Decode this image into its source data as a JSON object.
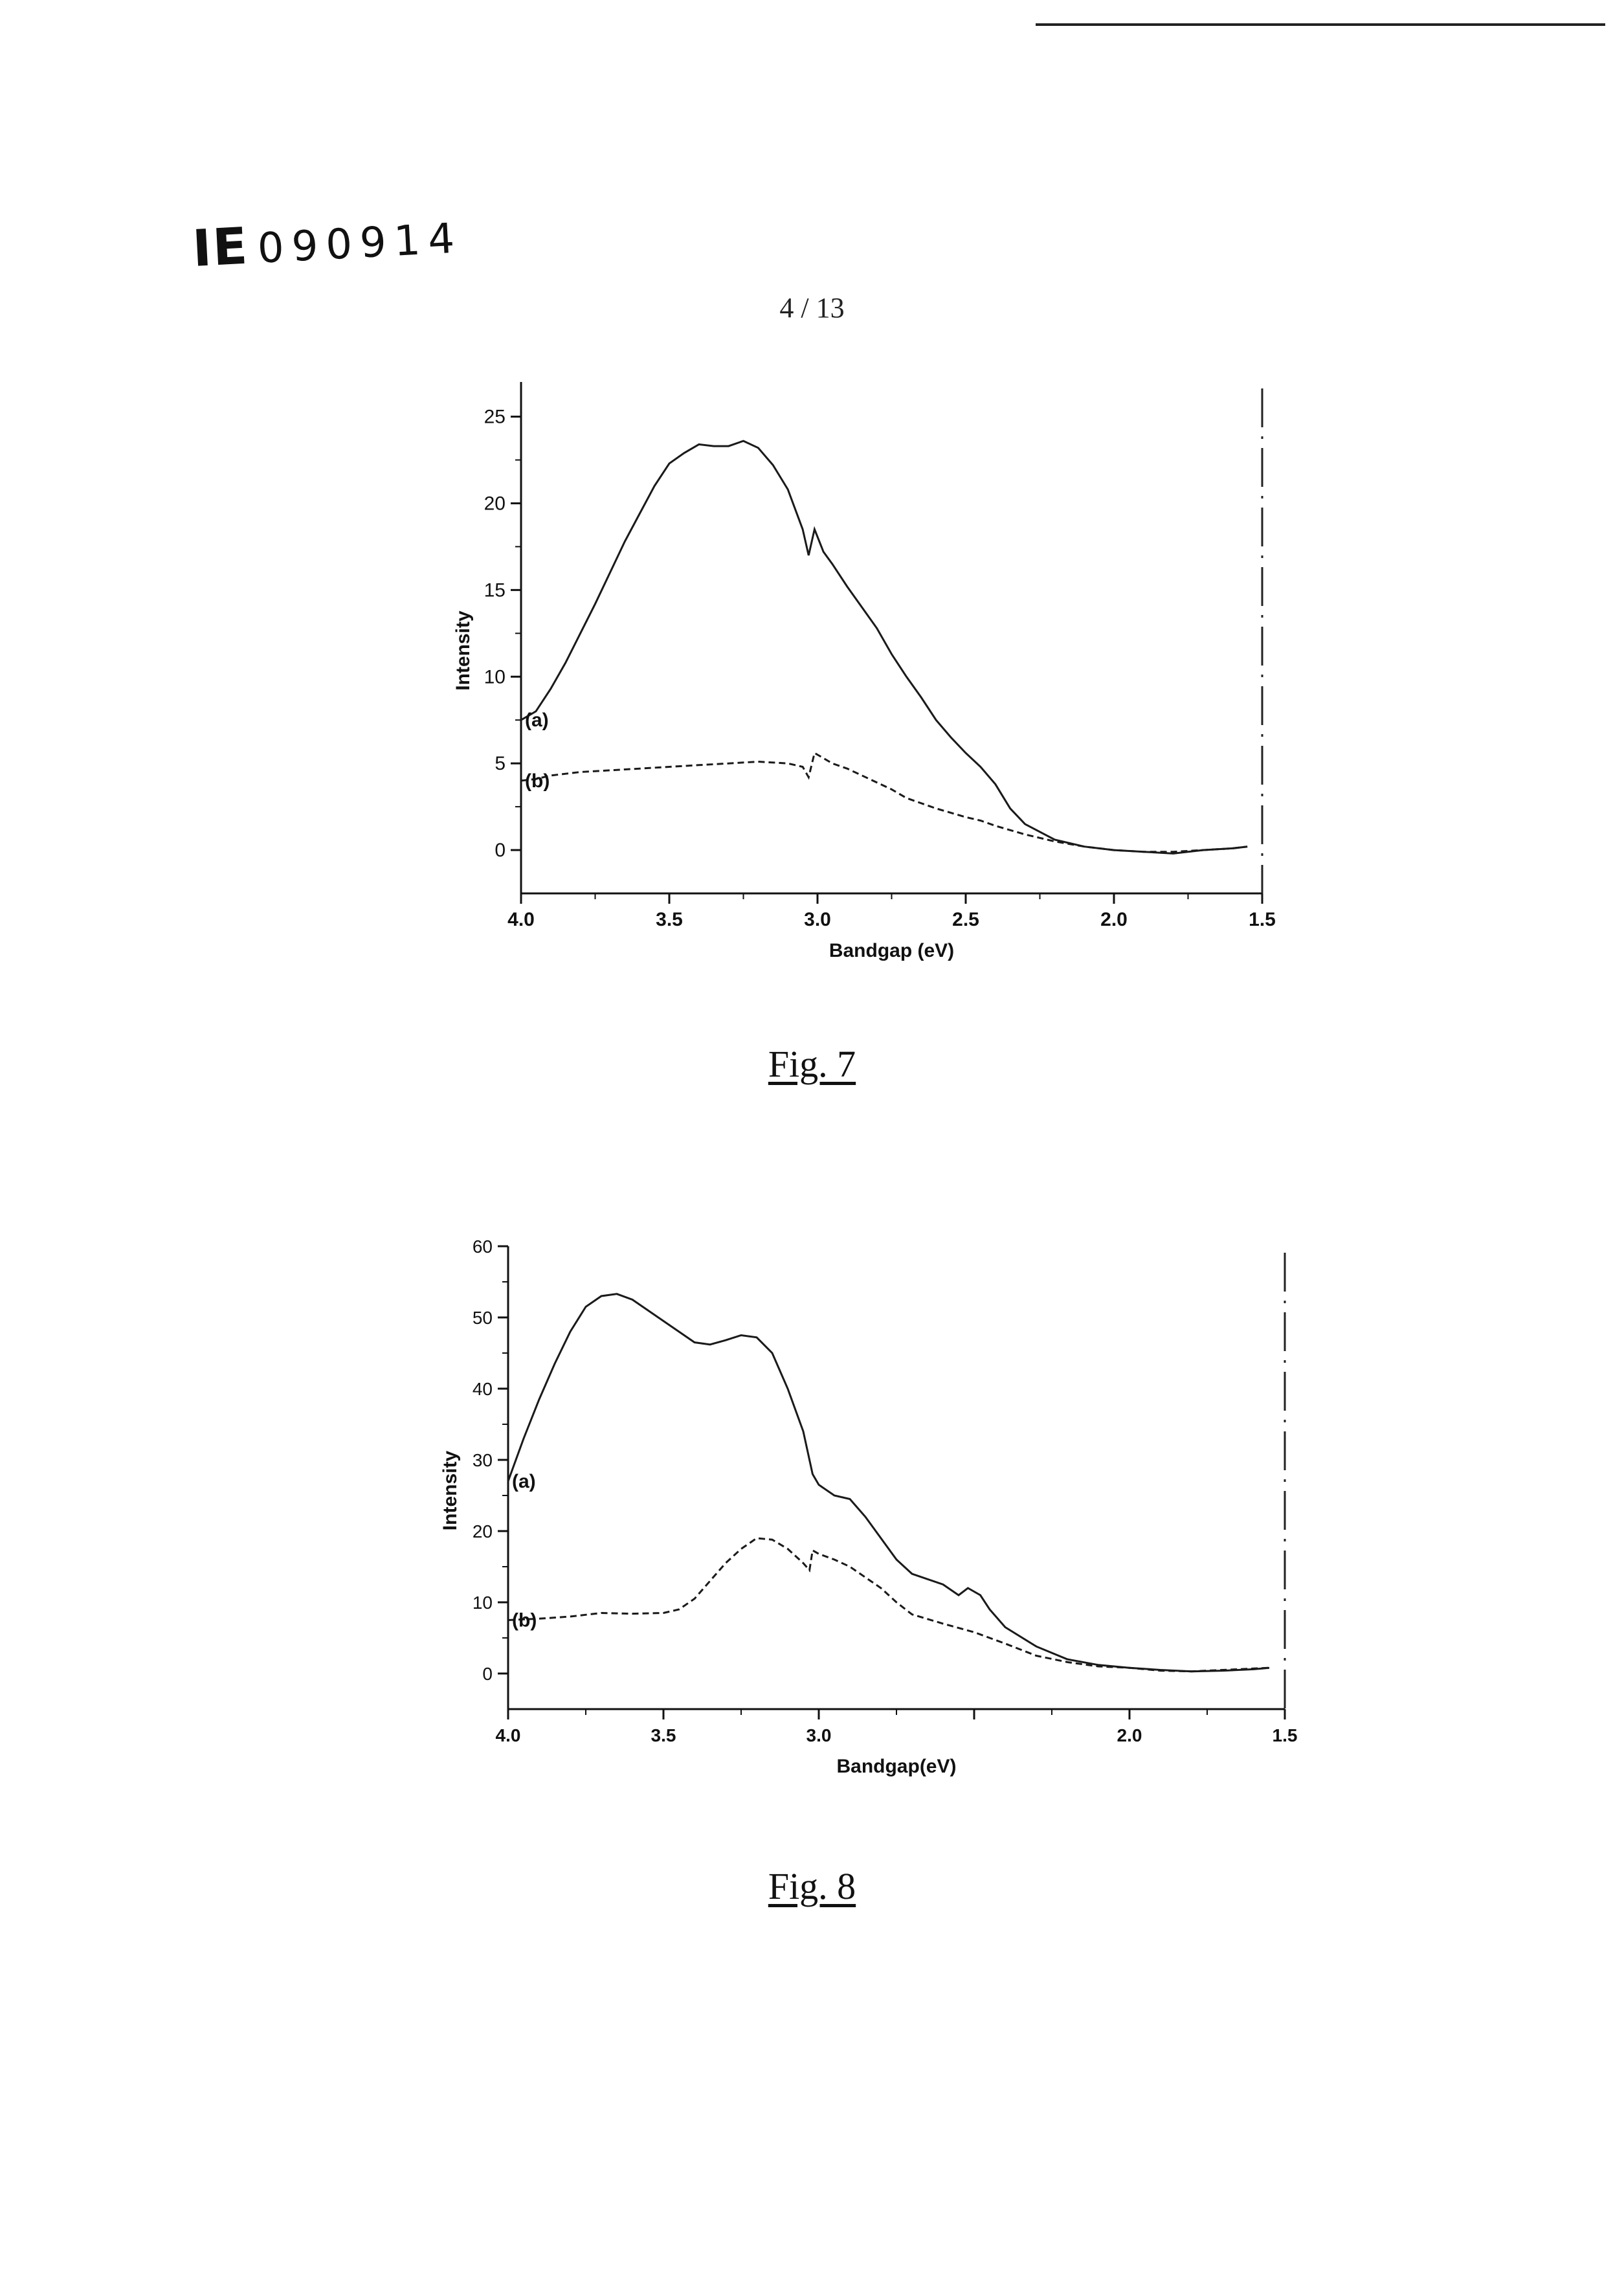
{
  "header": {
    "doc_id_prefix": "IE",
    "doc_id_number": "090914",
    "page_number": "4 / 13"
  },
  "figures": [
    {
      "caption": "Fig. 7"
    },
    {
      "caption": "Fig. 8"
    }
  ],
  "chart_data": [
    {
      "type": "line",
      "caption": "Fig. 7",
      "xlabel": "Bandgap (eV)",
      "ylabel": "Intensity",
      "xlim": [
        4.0,
        1.5
      ],
      "ylim": [
        -2.5,
        27
      ],
      "x_reversed": true,
      "x_ticks": [
        4.0,
        3.5,
        3.0,
        2.5,
        2.0,
        1.5
      ],
      "x_tick_labels": [
        "4.0",
        "3.5",
        "3.0",
        "2.5",
        "2.0",
        "1.5"
      ],
      "y_ticks": [
        0,
        5,
        10,
        15,
        20,
        25
      ],
      "y_tick_labels": [
        "0",
        "5",
        "10",
        "15",
        "20",
        "25"
      ],
      "grid": false,
      "series": [
        {
          "name": "(a)",
          "points": [
            [
              4.0,
              7.5
            ],
            [
              3.95,
              8.0
            ],
            [
              3.9,
              9.3
            ],
            [
              3.85,
              10.8
            ],
            [
              3.8,
              12.5
            ],
            [
              3.75,
              14.2
            ],
            [
              3.7,
              16.0
            ],
            [
              3.65,
              17.8
            ],
            [
              3.6,
              19.4
            ],
            [
              3.55,
              21.0
            ],
            [
              3.5,
              22.3
            ],
            [
              3.45,
              22.9
            ],
            [
              3.4,
              23.4
            ],
            [
              3.35,
              23.3
            ],
            [
              3.3,
              23.3
            ],
            [
              3.25,
              23.6
            ],
            [
              3.2,
              23.2
            ],
            [
              3.15,
              22.2
            ],
            [
              3.1,
              20.8
            ],
            [
              3.05,
              18.5
            ],
            [
              3.03,
              17.0
            ],
            [
              3.01,
              18.5
            ],
            [
              2.98,
              17.2
            ],
            [
              2.95,
              16.5
            ],
            [
              2.9,
              15.2
            ],
            [
              2.85,
              14.0
            ],
            [
              2.8,
              12.8
            ],
            [
              2.75,
              11.3
            ],
            [
              2.7,
              10.0
            ],
            [
              2.65,
              8.8
            ],
            [
              2.6,
              7.5
            ],
            [
              2.55,
              6.5
            ],
            [
              2.5,
              5.6
            ],
            [
              2.45,
              4.8
            ],
            [
              2.4,
              3.8
            ],
            [
              2.35,
              2.4
            ],
            [
              2.3,
              1.5
            ],
            [
              2.2,
              0.6
            ],
            [
              2.1,
              0.2
            ],
            [
              2.0,
              0.0
            ],
            [
              1.9,
              -0.1
            ],
            [
              1.8,
              -0.2
            ],
            [
              1.7,
              0.0
            ],
            [
              1.6,
              0.1
            ],
            [
              1.55,
              0.2
            ]
          ]
        },
        {
          "name": "(b)",
          "points": [
            [
              4.0,
              4.0
            ],
            [
              3.95,
              4.1
            ],
            [
              3.9,
              4.3
            ],
            [
              3.8,
              4.5
            ],
            [
              3.7,
              4.6
            ],
            [
              3.6,
              4.7
            ],
            [
              3.5,
              4.8
            ],
            [
              3.4,
              4.9
            ],
            [
              3.3,
              5.0
            ],
            [
              3.2,
              5.1
            ],
            [
              3.1,
              5.0
            ],
            [
              3.05,
              4.8
            ],
            [
              3.03,
              4.2
            ],
            [
              3.01,
              5.6
            ],
            [
              2.98,
              5.3
            ],
            [
              2.95,
              5.0
            ],
            [
              2.9,
              4.7
            ],
            [
              2.85,
              4.3
            ],
            [
              2.8,
              3.9
            ],
            [
              2.75,
              3.5
            ],
            [
              2.7,
              3.0
            ],
            [
              2.6,
              2.4
            ],
            [
              2.5,
              1.9
            ],
            [
              2.45,
              1.7
            ],
            [
              2.4,
              1.4
            ],
            [
              2.3,
              0.9
            ],
            [
              2.2,
              0.5
            ],
            [
              2.1,
              0.2
            ],
            [
              2.0,
              0.0
            ],
            [
              1.9,
              -0.1
            ],
            [
              1.8,
              -0.1
            ],
            [
              1.7,
              0.0
            ],
            [
              1.6,
              0.1
            ],
            [
              1.55,
              0.2
            ]
          ]
        }
      ]
    },
    {
      "type": "line",
      "caption": "Fig. 8",
      "xlabel": "Bandgap(eV)",
      "ylabel": "Intensity",
      "xlim": [
        4.0,
        1.5
      ],
      "ylim": [
        -5,
        60
      ],
      "x_reversed": true,
      "x_ticks": [
        4.0,
        3.5,
        3.0,
        2.0,
        1.5
      ],
      "x_tick_labels": [
        "4.0",
        "3.5",
        "3.0",
        "2.0",
        "1.5"
      ],
      "x_minor_ticks": [
        2.5
      ],
      "y_ticks": [
        0,
        10,
        20,
        30,
        40,
        50,
        60
      ],
      "y_tick_labels": [
        "0",
        "10",
        "20",
        "30",
        "40",
        "50",
        "60"
      ],
      "grid": false,
      "series": [
        {
          "name": "(a)",
          "points": [
            [
              4.0,
              27.0
            ],
            [
              3.95,
              33.0
            ],
            [
              3.9,
              38.5
            ],
            [
              3.85,
              43.5
            ],
            [
              3.8,
              48.0
            ],
            [
              3.75,
              51.5
            ],
            [
              3.7,
              53.0
            ],
            [
              3.65,
              53.3
            ],
            [
              3.6,
              52.5
            ],
            [
              3.55,
              51.0
            ],
            [
              3.5,
              49.5
            ],
            [
              3.45,
              48.0
            ],
            [
              3.4,
              46.5
            ],
            [
              3.35,
              46.2
            ],
            [
              3.3,
              46.8
            ],
            [
              3.25,
              47.5
            ],
            [
              3.2,
              47.2
            ],
            [
              3.15,
              45.0
            ],
            [
              3.1,
              40.0
            ],
            [
              3.05,
              34.0
            ],
            [
              3.02,
              28.0
            ],
            [
              3.0,
              26.5
            ],
            [
              2.95,
              25.0
            ],
            [
              2.9,
              24.5
            ],
            [
              2.85,
              22.0
            ],
            [
              2.8,
              19.0
            ],
            [
              2.75,
              16.0
            ],
            [
              2.7,
              14.0
            ],
            [
              2.6,
              12.5
            ],
            [
              2.55,
              11.0
            ],
            [
              2.52,
              12.0
            ],
            [
              2.48,
              11.0
            ],
            [
              2.45,
              9.0
            ],
            [
              2.4,
              6.5
            ],
            [
              2.3,
              3.8
            ],
            [
              2.2,
              2.0
            ],
            [
              2.1,
              1.2
            ],
            [
              2.0,
              0.8
            ],
            [
              1.9,
              0.5
            ],
            [
              1.8,
              0.3
            ],
            [
              1.7,
              0.4
            ],
            [
              1.6,
              0.6
            ],
            [
              1.55,
              0.8
            ]
          ]
        },
        {
          "name": "(b)",
          "points": [
            [
              4.0,
              7.5
            ],
            [
              3.9,
              7.7
            ],
            [
              3.8,
              8.0
            ],
            [
              3.7,
              8.5
            ],
            [
              3.6,
              8.4
            ],
            [
              3.5,
              8.5
            ],
            [
              3.45,
              9.0
            ],
            [
              3.4,
              10.5
            ],
            [
              3.35,
              13.0
            ],
            [
              3.3,
              15.5
            ],
            [
              3.25,
              17.5
            ],
            [
              3.2,
              19.0
            ],
            [
              3.15,
              18.8
            ],
            [
              3.1,
              17.5
            ],
            [
              3.05,
              15.5
            ],
            [
              3.03,
              14.5
            ],
            [
              3.02,
              17.3
            ],
            [
              3.0,
              16.8
            ],
            [
              2.95,
              16.0
            ],
            [
              2.9,
              15.0
            ],
            [
              2.85,
              13.5
            ],
            [
              2.8,
              12.0
            ],
            [
              2.75,
              10.0
            ],
            [
              2.7,
              8.3
            ],
            [
              2.6,
              7.0
            ],
            [
              2.5,
              5.8
            ],
            [
              2.45,
              5.0
            ],
            [
              2.4,
              4.2
            ],
            [
              2.3,
              2.5
            ],
            [
              2.2,
              1.6
            ],
            [
              2.1,
              1.0
            ],
            [
              2.0,
              0.8
            ],
            [
              1.9,
              0.4
            ],
            [
              1.8,
              0.3
            ],
            [
              1.7,
              0.5
            ],
            [
              1.6,
              0.7
            ],
            [
              1.55,
              0.8
            ]
          ]
        }
      ]
    }
  ]
}
